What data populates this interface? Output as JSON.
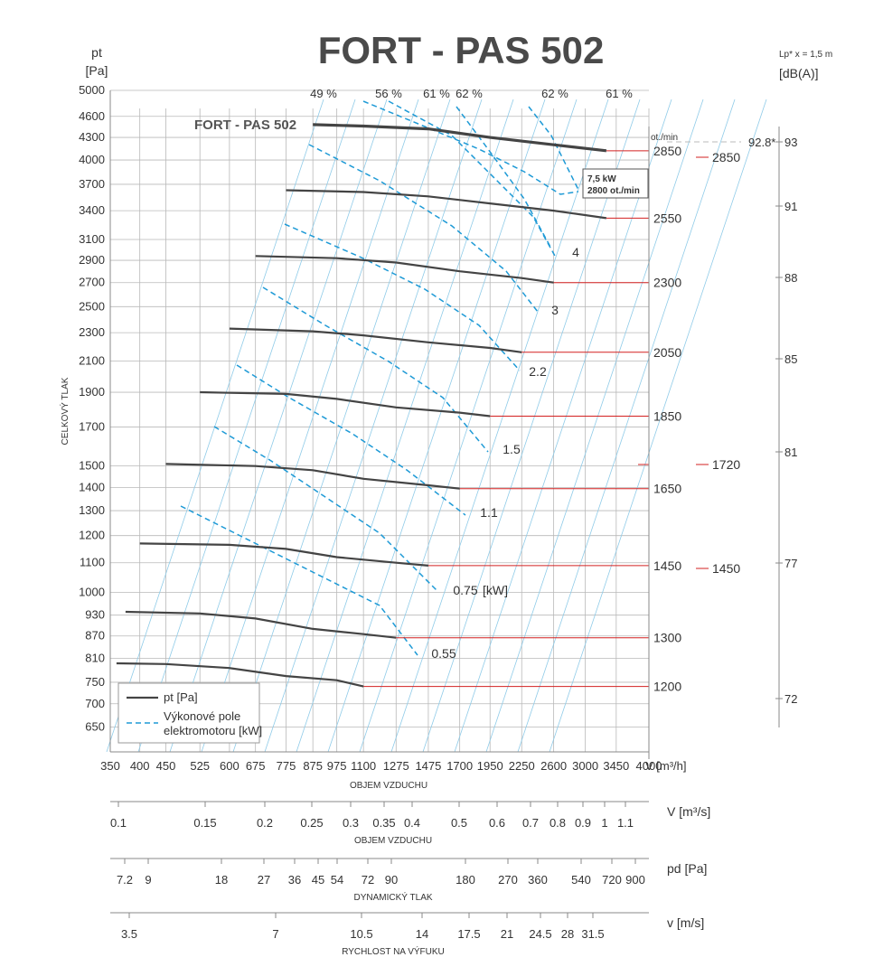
{
  "chart_data": {
    "type": "line",
    "title": "FORT - PAS 502",
    "plot_label": "FORT - PAS 502",
    "y_axis": {
      "name": "pt",
      "unit": "[Pa]",
      "label": "CELKOVÝ TLAK",
      "ticks": [
        650,
        700,
        750,
        810,
        870,
        930,
        1000,
        1100,
        1200,
        1300,
        1400,
        1500,
        1700,
        1900,
        2100,
        2300,
        2500,
        2700,
        2900,
        3100,
        3400,
        3700,
        4000,
        4300,
        4600,
        5000
      ],
      "scale": "log",
      "range": [
        600,
        5000
      ]
    },
    "x_axis": {
      "name": "V [m³/h]",
      "label": "OBJEM VZDUCHU",
      "ticks": [
        350,
        400,
        450,
        525,
        600,
        675,
        775,
        875,
        975,
        1100,
        1275,
        1475,
        1700,
        1950,
        2250,
        2600,
        3000,
        3450,
        4000
      ],
      "scale": "log",
      "range": [
        350,
        4000
      ]
    },
    "right_axis": {
      "name": "Lp* x = 1,5 m",
      "unit": "[dB(A)]",
      "ticks": [
        93,
        91,
        88,
        85,
        81,
        77,
        72
      ],
      "marker": "92.8*"
    },
    "speed_header": "ot./min",
    "grid": true,
    "series": [
      {
        "rpm": "2850",
        "x": [
          875,
          1100,
          1475,
          1950,
          2600,
          3300
        ],
        "y": [
          4480,
          4460,
          4420,
          4300,
          4200,
          4120
        ]
      },
      {
        "rpm": "2550",
        "x": [
          775,
          1100,
          1475,
          1950,
          2600,
          3300
        ],
        "y": [
          3630,
          3610,
          3560,
          3480,
          3400,
          3320
        ]
      },
      {
        "rpm": "2300",
        "x": [
          675,
          975,
          1275,
          1700,
          2250,
          2600
        ],
        "y": [
          2940,
          2920,
          2880,
          2800,
          2740,
          2700
        ]
      },
      {
        "rpm": "2050",
        "x": [
          600,
          875,
          1100,
          1475,
          1950,
          2250
        ],
        "y": [
          2330,
          2310,
          2280,
          2230,
          2190,
          2160
        ]
      },
      {
        "rpm": "1850",
        "x": [
          525,
          775,
          975,
          1275,
          1700,
          1950
        ],
        "y": [
          1900,
          1890,
          1860,
          1810,
          1780,
          1760
        ]
      },
      {
        "rpm": "1650",
        "x": [
          450,
          675,
          875,
          1100,
          1475,
          1700
        ],
        "y": [
          1510,
          1500,
          1480,
          1440,
          1410,
          1395
        ]
      },
      {
        "rpm": "1450",
        "x": [
          400,
          600,
          775,
          975,
          1275,
          1475
        ],
        "y": [
          1170,
          1165,
          1150,
          1120,
          1100,
          1090
        ]
      },
      {
        "rpm": "1300",
        "x": [
          375,
          525,
          675,
          875,
          1100,
          1275
        ],
        "y": [
          940,
          935,
          920,
          890,
          875,
          865
        ]
      },
      {
        "rpm": "1200",
        "x": [
          360,
          450,
          600,
          775,
          975,
          1100
        ],
        "y": [
          797,
          795,
          785,
          765,
          755,
          740
        ]
      }
    ],
    "speed_labels_left": [
      "2850",
      "2550",
      "2300",
      "2050",
      "1850",
      "1650",
      "1450",
      "1300",
      "1200"
    ],
    "speed_labels_right": [
      "2850",
      "1720",
      "1450"
    ],
    "power_labels": [
      "4",
      "3",
      "2.2",
      "1.5",
      "1.1",
      "0.75",
      "[kW]",
      "0.55"
    ],
    "efficiency_labels": [
      "49 %",
      "56 %",
      "61 %",
      "62 %",
      "62 %",
      "61 %"
    ],
    "motor_box": {
      "line1": "7,5 kW",
      "line2": "2800 ot./min"
    },
    "legend": {
      "pt_label": "pt [Pa]",
      "power_label_line1": "Výkonové pole",
      "power_label_line2": "elektromotoru  [kW]"
    },
    "secondary_scales": [
      {
        "name": "V  [m³/s]",
        "label": "OBJEM VZDUCHU",
        "ticks": [
          "0.1",
          "0.15",
          "0.2",
          "0.25",
          "0.3",
          "0.35",
          "0.4",
          "0.5",
          "0.6",
          "0.7",
          "0.8",
          "0.9",
          "1",
          "1.1"
        ]
      },
      {
        "name": "pd  [Pa]",
        "label": "DYNAMICKÝ TLAK",
        "ticks": [
          "7.2",
          "9",
          "18",
          "27",
          "36",
          "45",
          "54",
          "72",
          "90",
          "180",
          "270",
          "360",
          "540",
          "720",
          "900"
        ]
      },
      {
        "name": "v  [m/s]",
        "label": "RYCHLOST NA VÝFUKU",
        "ticks": [
          "3.5",
          "7",
          "10.5",
          "14",
          "17.5",
          "21",
          "24.5",
          "28",
          "31.5"
        ]
      }
    ],
    "colors": {
      "curve": "#444444",
      "power": "#1e9ad6",
      "grid": "#b9b9b9",
      "diagonal": "#8fcbe8",
      "speed_line": "#d32020"
    }
  }
}
